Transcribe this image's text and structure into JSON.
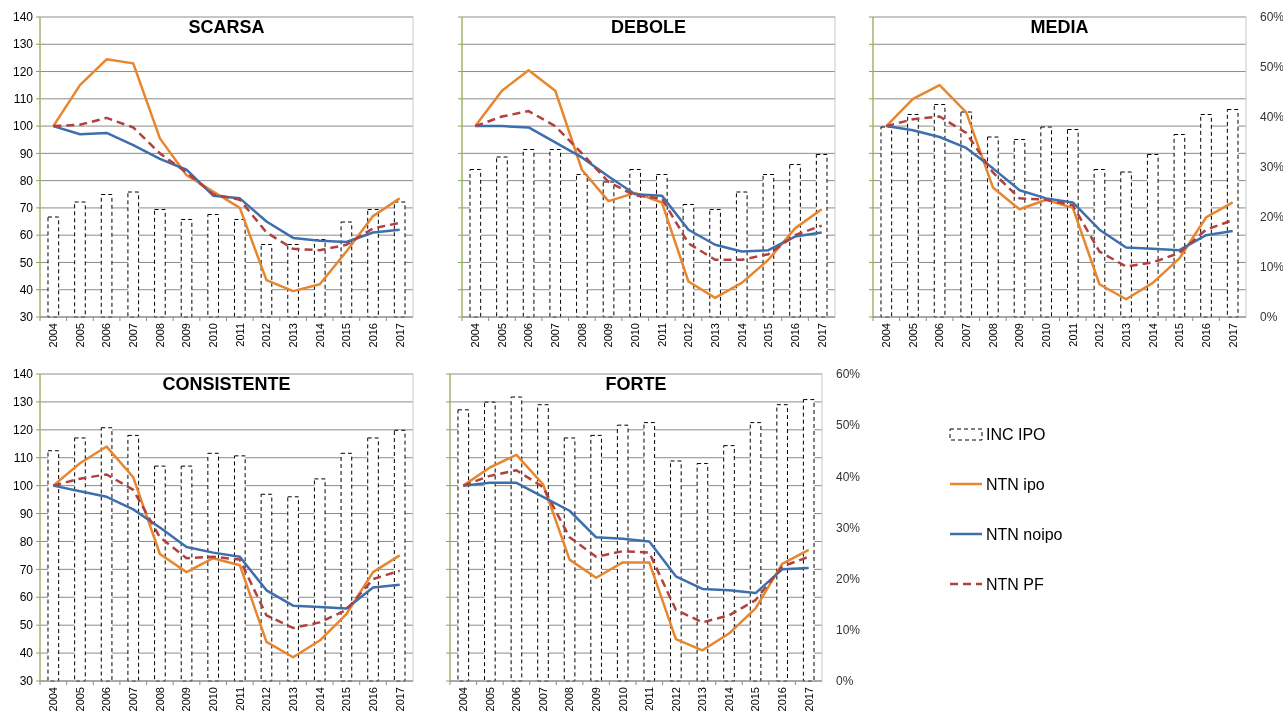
{
  "chart_data": [
    {
      "type": "bar",
      "title": "SCARSA",
      "categories": [
        "2004",
        "2005",
        "2006",
        "2007",
        "2008",
        "2009",
        "2010",
        "2011",
        "2012",
        "2013",
        "2014",
        "2015",
        "2016",
        "2017"
      ],
      "ylim": [
        30,
        140
      ],
      "yticks": [
        30,
        40,
        50,
        60,
        70,
        80,
        90,
        100,
        110,
        120,
        130,
        140
      ],
      "y2lim": [
        0,
        60
      ],
      "grid": "y",
      "series": [
        {
          "type": "bar",
          "axis": "y2",
          "color": "#000000",
          "line_style": "dashed",
          "values": [
            20,
            23,
            24.5,
            25,
            21.5,
            19.5,
            20.5,
            19.5,
            14.5,
            14.5,
            15.5,
            19,
            21.5,
            23
          ]
        },
        {
          "type": "line",
          "color": "#e8862e",
          "line_style": "solid",
          "values": [
            100,
            115,
            124.5,
            123,
            95.5,
            82,
            76,
            70,
            43.5,
            39.5,
            42,
            54,
            67,
            73.5
          ]
        },
        {
          "type": "line",
          "color": "#3d6fad",
          "line_style": "solid",
          "values": [
            100,
            97,
            97.5,
            93,
            88,
            84,
            74.5,
            73.5,
            65,
            59,
            58,
            57.5,
            61,
            62
          ]
        },
        {
          "type": "line",
          "color": "#b0413e",
          "line_style": "dashed",
          "values": [
            100,
            100.5,
            103,
            99.5,
            90,
            83,
            75,
            73,
            61,
            55,
            54.5,
            56.5,
            62.5,
            64.5
          ]
        }
      ]
    },
    {
      "type": "bar",
      "title": "DEBOLE",
      "categories": [
        "2004",
        "2005",
        "2006",
        "2007",
        "2008",
        "2009",
        "2010",
        "2011",
        "2012",
        "2013",
        "2014",
        "2015",
        "2016",
        "2017"
      ],
      "ylim": [
        30,
        140
      ],
      "yticks": [
        30,
        40,
        50,
        60,
        70,
        80,
        90,
        100,
        110,
        120,
        130,
        140
      ],
      "y2lim": [
        0,
        60
      ],
      "grid": "y",
      "tick_labels": "x",
      "series": [
        {
          "type": "bar",
          "axis": "y2",
          "color": "#000000",
          "line_style": "dashed",
          "values": [
            29.5,
            32,
            33.5,
            33.5,
            28.5,
            27,
            29.5,
            28.5,
            22.5,
            21.5,
            25,
            28.5,
            30.5,
            32.5
          ]
        },
        {
          "type": "line",
          "color": "#e8862e",
          "line_style": "solid",
          "values": [
            100,
            113,
            120.5,
            113,
            84,
            72.5,
            75.5,
            72,
            43,
            37,
            42.5,
            51,
            62.5,
            69.5
          ]
        },
        {
          "type": "line",
          "color": "#3d6fad",
          "line_style": "solid",
          "values": [
            100,
            100,
            99.5,
            94,
            88.5,
            81.5,
            75,
            74.5,
            62,
            56.5,
            54,
            54.5,
            59.5,
            61
          ]
        },
        {
          "type": "line",
          "color": "#b0413e",
          "line_style": "dashed",
          "values": [
            100,
            103.5,
            105.5,
            100,
            90,
            79.5,
            74.5,
            73.5,
            57,
            51,
            51,
            53,
            60,
            63.5
          ]
        }
      ]
    },
    {
      "type": "bar",
      "title": "MEDIA",
      "categories": [
        "2004",
        "2005",
        "2006",
        "2007",
        "2008",
        "2009",
        "2010",
        "2011",
        "2012",
        "2013",
        "2014",
        "2015",
        "2016",
        "2017"
      ],
      "ylim": [
        30,
        140
      ],
      "y2lim": [
        0,
        60
      ],
      "y2ticks": [
        {
          "value": 0,
          "label": "0%"
        },
        {
          "value": 10,
          "label": "10%"
        },
        {
          "value": 20,
          "label": "20%"
        },
        {
          "value": 30,
          "label": "30%"
        },
        {
          "value": 40,
          "label": "40%"
        },
        {
          "value": 50,
          "label": "50%"
        },
        {
          "value": 60,
          "label": "60%"
        }
      ],
      "grid": "y",
      "series": [
        {
          "type": "bar",
          "axis": "y2",
          "color": "#000000",
          "line_style": "dashed",
          "values": [
            38,
            40.5,
            42.5,
            41,
            36,
            35.5,
            38,
            37.5,
            29.5,
            29,
            32.5,
            36.5,
            40.5,
            41.5
          ]
        },
        {
          "type": "line",
          "color": "#e8862e",
          "line_style": "solid",
          "values": [
            100,
            110,
            115,
            105,
            77.5,
            69.5,
            73,
            70,
            42,
            36.5,
            42.5,
            51.5,
            66.5,
            72
          ]
        },
        {
          "type": "line",
          "color": "#3d6fad",
          "line_style": "solid",
          "values": [
            100,
            98.5,
            96,
            92,
            84.5,
            76.5,
            73.5,
            72,
            62,
            55.5,
            55,
            54.5,
            60,
            61.5
          ]
        },
        {
          "type": "line",
          "color": "#b0413e",
          "line_style": "dashed",
          "values": [
            100,
            102.5,
            103.5,
            97.5,
            83,
            73.5,
            73,
            71,
            54,
            48.5,
            50,
            53.5,
            62,
            65.5
          ]
        }
      ]
    },
    {
      "type": "bar",
      "title": "CONSISTENTE",
      "categories": [
        "2004",
        "2005",
        "2006",
        "2007",
        "2008",
        "2009",
        "2010",
        "2011",
        "2012",
        "2013",
        "2014",
        "2015",
        "2016",
        "2017"
      ],
      "ylim": [
        30,
        140
      ],
      "yticks": [
        30,
        40,
        50,
        60,
        70,
        80,
        90,
        100,
        110,
        120,
        130,
        140
      ],
      "y2lim": [
        0,
        60
      ],
      "grid": "y",
      "series": [
        {
          "type": "bar",
          "axis": "y2",
          "color": "#000000",
          "line_style": "dashed",
          "values": [
            45,
            47.5,
            49.5,
            48,
            42,
            42,
            44.5,
            44,
            36.5,
            36,
            39.5,
            44.5,
            47.5,
            49
          ]
        },
        {
          "type": "line",
          "color": "#e8862e",
          "line_style": "solid",
          "values": [
            100,
            108,
            114,
            103,
            75.5,
            69,
            74,
            71.5,
            44,
            38.5,
            44.5,
            54,
            69,
            75
          ]
        },
        {
          "type": "line",
          "color": "#3d6fad",
          "line_style": "solid",
          "values": [
            100,
            98,
            96,
            91.5,
            85,
            78,
            76,
            74.5,
            62.5,
            57,
            56.5,
            56,
            63.5,
            64.5
          ]
        },
        {
          "type": "line",
          "color": "#b0413e",
          "line_style": "dashed",
          "values": [
            100,
            102.5,
            104,
            98.5,
            81.5,
            74,
            74.5,
            73.5,
            53.5,
            49,
            51,
            55.5,
            66.5,
            69.5
          ]
        }
      ]
    },
    {
      "type": "bar",
      "title": "FORTE",
      "categories": [
        "2004",
        "2005",
        "2006",
        "2007",
        "2008",
        "2009",
        "2010",
        "2011",
        "2012",
        "2013",
        "2014",
        "2015",
        "2016",
        "2017"
      ],
      "ylim": [
        30,
        140
      ],
      "y2lim": [
        0,
        60
      ],
      "y2ticks": [
        {
          "value": 0,
          "label": "0%"
        },
        {
          "value": 10,
          "label": "10%"
        },
        {
          "value": 20,
          "label": "20%"
        },
        {
          "value": 30,
          "label": "30%"
        },
        {
          "value": 40,
          "label": "40%"
        },
        {
          "value": 50,
          "label": "50%"
        },
        {
          "value": 60,
          "label": "60%"
        }
      ],
      "grid": "y",
      "legend": "right",
      "series": [
        {
          "type": "bar",
          "axis": "y2",
          "name": "INC IPO",
          "color": "#000000",
          "line_style": "dashed",
          "values": [
            53,
            54.5,
            55.5,
            54,
            47.5,
            48,
            50,
            50.5,
            43,
            42.5,
            46,
            50.5,
            54,
            55
          ]
        },
        {
          "type": "line",
          "name": "NTN ipo",
          "color": "#e8862e",
          "line_style": "solid",
          "values": [
            100,
            106.5,
            111,
            100.5,
            73.5,
            67,
            72.5,
            72.5,
            45,
            41,
            47,
            56,
            72,
            77
          ]
        },
        {
          "type": "line",
          "name": "NTN noipo",
          "color": "#3d6fad",
          "line_style": "solid",
          "values": [
            100,
            101,
            101,
            96,
            91,
            81.5,
            81,
            80,
            67.5,
            63,
            62.5,
            61.5,
            70,
            70.5
          ]
        },
        {
          "type": "line",
          "name": "NTN PF",
          "color": "#b0413e",
          "line_style": "dashed",
          "values": [
            100,
            103.5,
            105.5,
            99.5,
            81.5,
            74.5,
            76.5,
            76,
            55.5,
            51,
            53.5,
            59,
            71,
            74.5
          ]
        }
      ]
    }
  ]
}
